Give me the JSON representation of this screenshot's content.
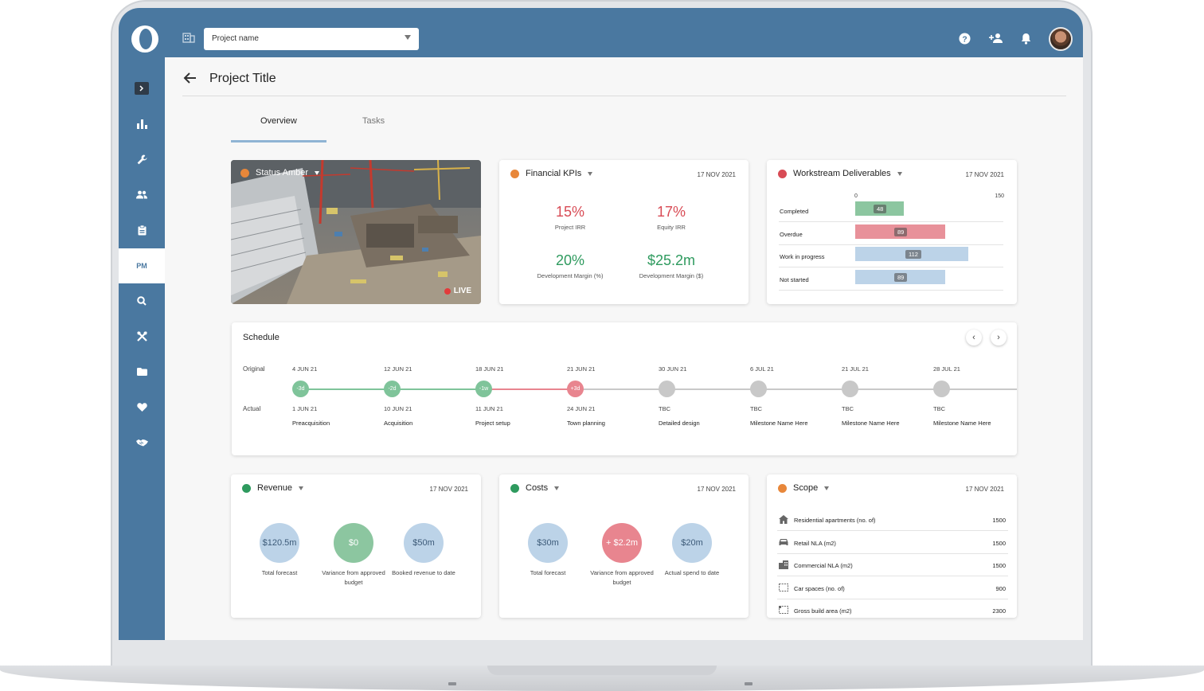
{
  "header": {
    "project_select_value": "Project name",
    "page_title": "Project Title"
  },
  "sidebar": {
    "items": [
      {
        "icon": "chevron-right-icon"
      },
      {
        "icon": "bar-chart-icon"
      },
      {
        "icon": "wrench-icon"
      },
      {
        "icon": "people-icon"
      },
      {
        "icon": "clipboard-icon"
      },
      {
        "label": "PM"
      },
      {
        "icon": "search-icon"
      },
      {
        "icon": "tools-icon"
      },
      {
        "icon": "folder-icon"
      },
      {
        "icon": "heart-icon"
      },
      {
        "icon": "handshake-icon"
      }
    ]
  },
  "tabs": [
    {
      "label": "Overview"
    },
    {
      "label": "Tasks"
    }
  ],
  "status_card": {
    "label": "Status Amber",
    "live": "LIVE",
    "color": "#e8873a"
  },
  "financial_kpis": {
    "title": "Financial KPIs",
    "date": "17 NOV 2021",
    "items": [
      {
        "value": "15%",
        "label": "Project IRR",
        "color": "#d84b55"
      },
      {
        "value": "17%",
        "label": "Equity IRR",
        "color": "#d84b55"
      },
      {
        "value": "20%",
        "label": "Development Margin (%)",
        "color": "#2e9a5e"
      },
      {
        "value": "$25.2m",
        "label": "Development Margin ($)",
        "color": "#2e9a5e"
      }
    ]
  },
  "workstream": {
    "title": "Workstream Deliverables",
    "date": "17 NOV 2021",
    "axis_min": "0",
    "axis_max": "150",
    "rows": [
      {
        "label": "Completed",
        "value": 48,
        "badge": "48",
        "color": "#8cc6a0"
      },
      {
        "label": "Overdue",
        "value": 89,
        "badge": "89",
        "color": "#e8919a"
      },
      {
        "label": "Work in progress",
        "value": 112,
        "badge": "112",
        "color": "#bcd3e8"
      },
      {
        "label": "Not started",
        "value": 89,
        "badge": "89",
        "color": "#bcd3e8"
      }
    ]
  },
  "schedule": {
    "title": "Schedule",
    "original_label": "Original",
    "actual_label": "Actual",
    "milestones": [
      {
        "original": "4 JUN 21",
        "badge": "-3d",
        "actual": "1 JUN 21",
        "name": "Preacquisition",
        "color": "#7fc49a"
      },
      {
        "original": "12 JUN 21",
        "badge": "-2d",
        "actual": "10 JUN 21",
        "name": "Acquisition",
        "color": "#7fc49a"
      },
      {
        "original": "18 JUN 21",
        "badge": "-1w",
        "actual": "11 JUN 21",
        "name": "Project setup",
        "color": "#7fc49a"
      },
      {
        "original": "21 JUN 21",
        "badge": "+3d",
        "actual": "24 JUN 21",
        "name": "Town planning",
        "color": "#e8858f"
      },
      {
        "original": "30 JUN 21",
        "badge": "",
        "actual": "TBC",
        "name": "Detailed design",
        "color": "#c8c8c8"
      },
      {
        "original": "6 JUL 21",
        "badge": "",
        "actual": "TBC",
        "name": "Milestone Name Here",
        "color": "#c8c8c8"
      },
      {
        "original": "21 JUL 21",
        "badge": "",
        "actual": "TBC",
        "name": "Milestone Name Here",
        "color": "#c8c8c8"
      },
      {
        "original": "28 JUL 21",
        "badge": "",
        "actual": "TBC",
        "name": "Milestone Name Here",
        "color": "#c8c8c8"
      }
    ]
  },
  "revenue": {
    "title": "Revenue",
    "date": "17 NOV 2021",
    "color": "#2e9a5e",
    "items": [
      {
        "value": "$120.5m",
        "label": "Total forecast",
        "bg": "#bcd3e8",
        "fg": "#3c5a78"
      },
      {
        "value": "$0",
        "label": "Variance from approved budget",
        "bg": "#8cc6a0",
        "fg": "#ffffff"
      },
      {
        "value": "$50m",
        "label": "Booked revenue to date",
        "bg": "#bcd3e8",
        "fg": "#3c5a78"
      }
    ]
  },
  "costs": {
    "title": "Costs",
    "date": "17 NOV 2021",
    "color": "#2e9a5e",
    "items": [
      {
        "value": "$30m",
        "label": "Total forecast",
        "bg": "#bcd3e8",
        "fg": "#3c5a78"
      },
      {
        "value": "+ $2.2m",
        "label": "Variance from approved budget",
        "bg": "#e8858f",
        "fg": "#ffffff"
      },
      {
        "value": "$20m",
        "label": "Actual spend to date",
        "bg": "#bcd3e8",
        "fg": "#3c5a78"
      }
    ]
  },
  "scope": {
    "title": "Scope",
    "date": "17 NOV 2021",
    "color": "#e8873a",
    "rows": [
      {
        "icon": "house-icon",
        "label": "Residential apartments (no. of)",
        "value": "1500"
      },
      {
        "icon": "car-icon",
        "label": "Retail NLA (m2)",
        "value": "1500"
      },
      {
        "icon": "office-building-icon",
        "label": "Commercial NLA (m2)",
        "value": "1500"
      },
      {
        "icon": "parking-area-icon",
        "label": "Car spaces (no. of)",
        "value": "900"
      },
      {
        "icon": "area-icon",
        "label": "Gross build area (m2)",
        "value": "2300"
      }
    ]
  },
  "colors": {
    "brand": "#4a78a0",
    "amber": "#e8873a",
    "red": "#d84b55",
    "green": "#2e9a5e"
  }
}
